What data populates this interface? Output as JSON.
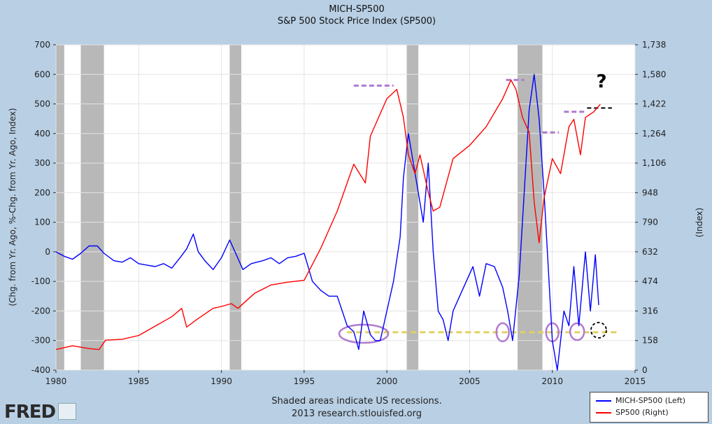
{
  "chart_data": {
    "type": "line",
    "title": "MICH-SP500",
    "subtitle": "S&P 500 Stock Price Index (SP500)",
    "xlabel": "",
    "ylabel_left": "(Chg. from Yr. Ago, %-Chg. from Yr. Ago, Index)",
    "ylabel_right": "(Index)",
    "xlim": [
      1980,
      2015
    ],
    "ylim_left": [
      -400,
      700
    ],
    "ylim_right": [
      0,
      1738
    ],
    "x_ticks": [
      "1980",
      "1985",
      "1990",
      "1995",
      "2000",
      "2005",
      "2010",
      "2015"
    ],
    "y_ticks_left": [
      "700",
      "600",
      "500",
      "400",
      "300",
      "200",
      "100",
      "0",
      "-100",
      "-200",
      "-300",
      "-400"
    ],
    "y_ticks_right": [
      "1,738",
      "1,580",
      "1,422",
      "1,264",
      "1,106",
      "948",
      "790",
      "632",
      "474",
      "316",
      "158",
      "0"
    ],
    "recessions": [
      [
        1980.0,
        1980.5
      ],
      [
        1981.5,
        1982.9
      ],
      [
        1990.5,
        1991.2
      ],
      [
        2001.2,
        2001.9
      ],
      [
        2007.9,
        2009.4
      ]
    ],
    "series": [
      {
        "name": "MICH-SP500 (Left)",
        "color": "#0000ff",
        "axis": "left",
        "x": [
          1980.0,
          1980.5,
          1981.0,
          1981.5,
          1982.0,
          1982.5,
          1982.9,
          1983.5,
          1984.0,
          1984.5,
          1985.0,
          1985.5,
          1986.0,
          1986.5,
          1987.0,
          1987.5,
          1987.9,
          1988.3,
          1988.6,
          1989.0,
          1989.5,
          1990.0,
          1990.5,
          1990.9,
          1991.3,
          1991.8,
          1992.5,
          1993.0,
          1993.5,
          1994.0,
          1994.5,
          1995.0,
          1995.5,
          1996.0,
          1996.5,
          1997.0,
          1997.3,
          1997.6,
          1998.0,
          1998.3,
          1998.6,
          1999.0,
          1999.3,
          1999.6,
          2000.0,
          2000.4,
          2000.8,
          2001.0,
          2001.3,
          2001.6,
          2001.9,
          2002.2,
          2002.5,
          2002.8,
          2003.1,
          2003.4,
          2003.7,
          2004.0,
          2004.4,
          2004.8,
          2005.2,
          2005.6,
          2006.0,
          2006.5,
          2007.0,
          2007.3,
          2007.6,
          2008.0,
          2008.3,
          2008.6,
          2008.9,
          2009.2,
          2009.5,
          2009.8,
          2010.0,
          2010.3,
          2010.7,
          2011.0,
          2011.3,
          2011.6,
          2012.0,
          2012.3,
          2012.6,
          2012.8
        ],
        "values": [
          0,
          -15,
          -25,
          -5,
          20,
          20,
          -5,
          -30,
          -35,
          -20,
          -40,
          -45,
          -50,
          -40,
          -55,
          -20,
          10,
          60,
          0,
          -30,
          -60,
          -20,
          40,
          -10,
          -60,
          -40,
          -30,
          -20,
          -40,
          -20,
          -15,
          -5,
          -100,
          -130,
          -150,
          -150,
          -200,
          -250,
          -270,
          -330,
          -200,
          -280,
          -300,
          -300,
          -200,
          -100,
          50,
          250,
          400,
          300,
          200,
          100,
          300,
          0,
          -200,
          -230,
          -300,
          -200,
          -150,
          -100,
          -50,
          -150,
          -40,
          -50,
          -120,
          -200,
          -300,
          -80,
          200,
          480,
          600,
          450,
          200,
          -100,
          -300,
          -400,
          -200,
          -250,
          -50,
          -250,
          0,
          -200,
          -10,
          -180
        ]
      },
      {
        "name": "SP500 (Right)",
        "color": "#ff0000",
        "axis": "right",
        "x": [
          1980.0,
          1981.0,
          1982.0,
          1982.6,
          1983.0,
          1984.0,
          1985.0,
          1986.0,
          1987.0,
          1987.6,
          1987.9,
          1988.5,
          1989.5,
          1990.0,
          1990.6,
          1991.0,
          1992.0,
          1993.0,
          1994.0,
          1995.0,
          1996.0,
          1997.0,
          1998.0,
          1998.7,
          1999.0,
          2000.0,
          2000.6,
          2001.0,
          2001.3,
          2001.7,
          2002.0,
          2002.5,
          2002.8,
          2003.2,
          2003.6,
          2004.0,
          2005.0,
          2006.0,
          2007.0,
          2007.5,
          2007.8,
          2008.2,
          2008.6,
          2008.9,
          2009.2,
          2009.5,
          2010.0,
          2010.5,
          2011.0,
          2011.3,
          2011.7,
          2012.0,
          2012.5,
          2012.9
        ],
        "values": [
          110,
          130,
          115,
          110,
          160,
          165,
          185,
          235,
          285,
          330,
          230,
          270,
          330,
          340,
          355,
          330,
          410,
          455,
          470,
          480,
          650,
          850,
          1100,
          1000,
          1250,
          1450,
          1500,
          1350,
          1150,
          1050,
          1150,
          950,
          850,
          870,
          1000,
          1130,
          1200,
          1300,
          1450,
          1550,
          1500,
          1350,
          1270,
          900,
          680,
          920,
          1130,
          1050,
          1300,
          1340,
          1150,
          1350,
          1380,
          1420
        ]
      }
    ]
  },
  "annotations": {
    "question_mark": "?"
  },
  "footer": {
    "line1": "Shaded areas indicate US recessions.",
    "line2": "2013 research.stlouisfed.org"
  },
  "logo": {
    "text": "FRED"
  },
  "legend": {
    "items": [
      {
        "label": "MICH-SP500 (Left)",
        "color": "#0000ff"
      },
      {
        "label": "SP500 (Right)",
        "color": "#ff0000"
      }
    ]
  }
}
